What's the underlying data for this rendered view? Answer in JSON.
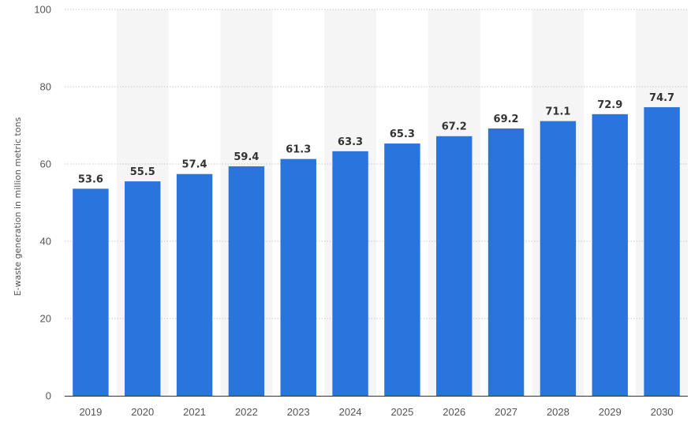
{
  "chart_data": {
    "type": "bar",
    "categories": [
      "2019",
      "2020",
      "2021",
      "2022",
      "2023",
      "2024",
      "2025",
      "2026",
      "2027",
      "2028",
      "2029",
      "2030"
    ],
    "values": [
      53.6,
      55.5,
      57.4,
      59.4,
      61.3,
      63.3,
      65.3,
      67.2,
      69.2,
      71.1,
      72.9,
      74.7
    ],
    "value_labels": [
      "53.6",
      "55.5",
      "57.4",
      "59.4",
      "61.3",
      "63.3",
      "65.3",
      "67.2",
      "69.2",
      "71.1",
      "72.9",
      "74.7"
    ],
    "y_ticks": [
      0,
      20,
      40,
      60,
      80,
      100
    ],
    "y_tick_labels": [
      "0",
      "20",
      "40",
      "60",
      "80",
      "100"
    ],
    "ylim": [
      0,
      100
    ],
    "ylabel": "E-waste generation in million metric tons",
    "xlabel": "",
    "title": "",
    "grid": true,
    "legend": false,
    "colors": {
      "bar": "#2a75dd",
      "band": "#f5f5f5",
      "grid": "#c8c8c8",
      "axis": "#333333"
    }
  }
}
